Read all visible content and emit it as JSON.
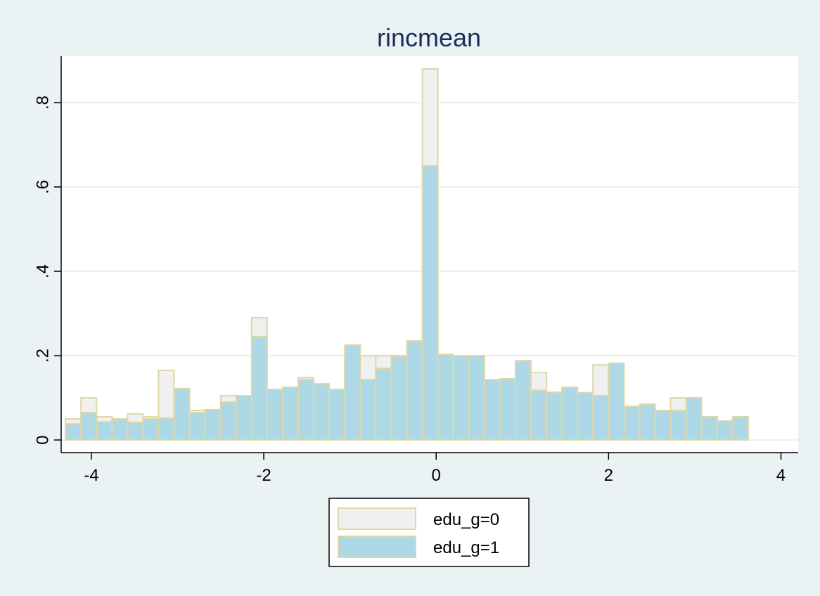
{
  "chart_data": {
    "type": "bar",
    "title": "rincmean",
    "xlabel": "",
    "ylabel": "",
    "xlim": [
      -4.35,
      4.2
    ],
    "ylim": [
      -0.03,
      0.91
    ],
    "x_ticks": [
      -4,
      -2,
      0,
      2,
      4
    ],
    "x_tick_labels": [
      "-4",
      "-2",
      "0",
      "2",
      "4"
    ],
    "y_ticks": [
      0,
      0.2,
      0.4,
      0.6,
      0.8
    ],
    "y_tick_labels": [
      "0",
      ".2",
      ".4",
      ".6",
      ".8"
    ],
    "grid": "horizontal",
    "legend_position": "bottom-center",
    "bin_start": -4.3,
    "bin_width": 0.18,
    "series": [
      {
        "name": "edu_g=0",
        "fill": "#f0f0f0",
        "stroke": "#e0d7a6",
        "values": [
          0.05,
          0.1,
          0.055,
          0.05,
          0.062,
          0.055,
          0.165,
          0.12,
          0.07,
          0.07,
          0.105,
          0.105,
          0.29,
          0.12,
          0.125,
          0.148,
          0.133,
          0.12,
          0.2,
          0.2,
          0.2,
          0.2,
          0.2,
          0.88,
          0.2,
          0.2,
          0.2,
          0.143,
          0.145,
          0.185,
          0.16,
          0.113,
          0.125,
          0.112,
          0.178,
          0.178,
          0.08,
          0.085,
          0.07,
          0.1,
          0.1,
          0.055,
          0.045,
          0.055
        ]
      },
      {
        "name": "edu_g=1",
        "fill": "#add8e6",
        "stroke": "#e0d7a6",
        "values": [
          0.038,
          0.065,
          0.043,
          0.048,
          0.042,
          0.05,
          0.052,
          0.122,
          0.065,
          0.072,
          0.09,
          0.105,
          0.245,
          0.12,
          0.125,
          0.143,
          0.133,
          0.12,
          0.225,
          0.143,
          0.17,
          0.198,
          0.235,
          0.65,
          0.203,
          0.2,
          0.2,
          0.143,
          0.145,
          0.188,
          0.118,
          0.113,
          0.125,
          0.112,
          0.105,
          0.182,
          0.08,
          0.085,
          0.07,
          0.07,
          0.1,
          0.055,
          0.045,
          0.055
        ]
      }
    ]
  }
}
